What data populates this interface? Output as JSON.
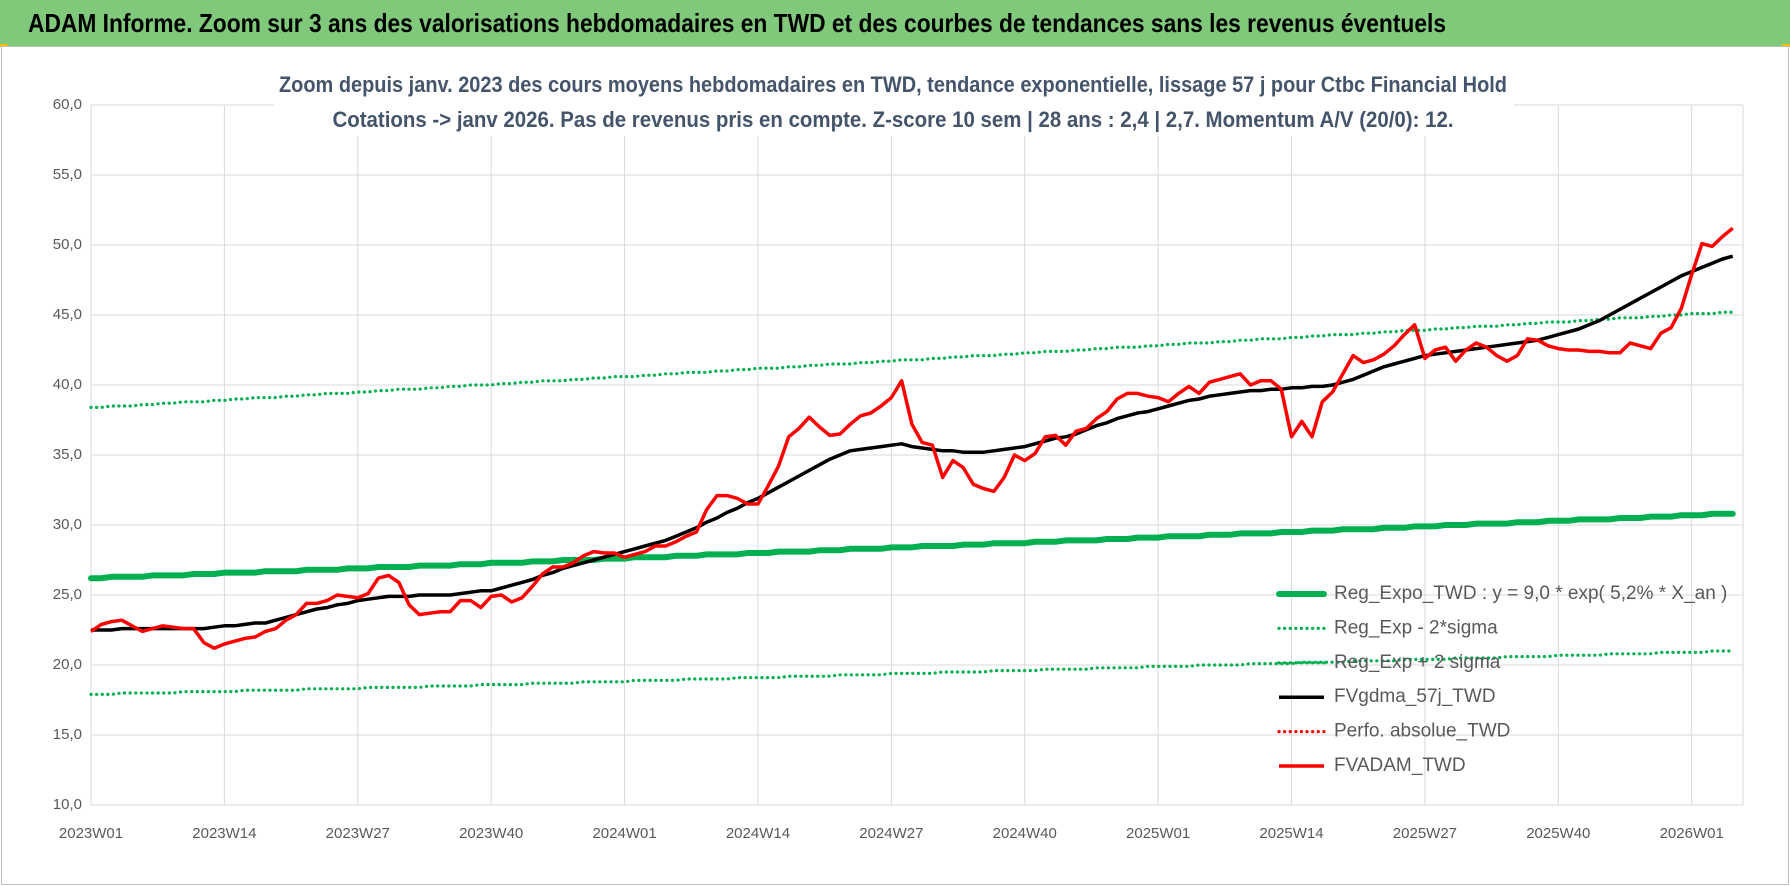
{
  "chart_data": {
    "type": "line",
    "title": "ADAM Informe. Zoom sur 3 ans des valorisations hebdomadaires en TWD et des courbes de tendances sans les revenus éventuels",
    "subtitle": [
      "Zoom depuis janv. 2023 des cours moyens hebdomadaires en TWD, tendance exponentielle, lissage 57 j pour Ctbc Financial Hold",
      "Cotations -> janv 2026. Pas de revenus pris en compte. Z-score 10 sem  | 28 ans : 2,4 | 2,7. Momentum A/V (20/0): 12."
    ],
    "categories": [
      "2023W01",
      null,
      null,
      null,
      null,
      null,
      null,
      null,
      null,
      null,
      null,
      null,
      null,
      "2023W14",
      null,
      null,
      null,
      null,
      null,
      null,
      null,
      null,
      null,
      null,
      null,
      null,
      "2023W27",
      null,
      null,
      null,
      null,
      null,
      null,
      null,
      null,
      null,
      null,
      null,
      null,
      "2023W40",
      null,
      null,
      null,
      null,
      null,
      null,
      null,
      null,
      null,
      null,
      null,
      null,
      "2024W01",
      null,
      null,
      null,
      null,
      null,
      null,
      null,
      null,
      null,
      null,
      null,
      null,
      "2024W14",
      null,
      null,
      null,
      null,
      null,
      null,
      null,
      null,
      null,
      null,
      null,
      null,
      "2024W27",
      null,
      null,
      null,
      null,
      null,
      null,
      null,
      null,
      null,
      null,
      null,
      null,
      "2024W40",
      null,
      null,
      null,
      null,
      null,
      null,
      null,
      null,
      null,
      null,
      null,
      null,
      "2025W01",
      null,
      null,
      null,
      null,
      null,
      null,
      null,
      null,
      null,
      null,
      null,
      null,
      "2025W14",
      null,
      null,
      null,
      null,
      null,
      null,
      null,
      null,
      null,
      null,
      null,
      null,
      "2025W27",
      null,
      null,
      null,
      null,
      null,
      null,
      null,
      null,
      null,
      null,
      null,
      null,
      "2025W40",
      null,
      null,
      null,
      null,
      null,
      null,
      null,
      null,
      null,
      null,
      null,
      null,
      "2026W01",
      null,
      null,
      null,
      null
    ],
    "ylim": [
      10,
      60
    ],
    "yticks": [
      {
        "value": 10,
        "label": "10,0"
      },
      {
        "value": 15,
        "label": "15,0"
      },
      {
        "value": 20,
        "label": "20,0"
      },
      {
        "value": 25,
        "label": "25,0"
      },
      {
        "value": 30,
        "label": "30,0"
      },
      {
        "value": 35,
        "label": "35,0"
      },
      {
        "value": 40,
        "label": "40,0"
      },
      {
        "value": 45,
        "label": "45,0"
      },
      {
        "value": 50,
        "label": "50,0"
      },
      {
        "value": 55,
        "label": "55,0"
      },
      {
        "value": 60,
        "label": "60,0"
      }
    ],
    "grid": true,
    "legend": "bottom-right",
    "series": [
      {
        "name": "Reg_Expo_TWD : y = 9,0 * exp( 5,2% *  X_an )",
        "color": "#00b050",
        "style": "thick",
        "values": [
          26.2,
          26.2,
          26.3,
          26.3,
          26.3,
          26.3,
          26.4,
          26.4,
          26.4,
          26.4,
          26.5,
          26.5,
          26.5,
          26.6,
          26.6,
          26.6,
          26.6,
          26.7,
          26.7,
          26.7,
          26.7,
          26.8,
          26.8,
          26.8,
          26.8,
          26.9,
          26.9,
          26.9,
          27.0,
          27.0,
          27.0,
          27.0,
          27.1,
          27.1,
          27.1,
          27.1,
          27.2,
          27.2,
          27.2,
          27.3,
          27.3,
          27.3,
          27.3,
          27.4,
          27.4,
          27.4,
          27.5,
          27.5,
          27.5,
          27.5,
          27.6,
          27.6,
          27.6,
          27.7,
          27.7,
          27.7,
          27.7,
          27.8,
          27.8,
          27.8,
          27.9,
          27.9,
          27.9,
          27.9,
          28.0,
          28.0,
          28.0,
          28.1,
          28.1,
          28.1,
          28.1,
          28.2,
          28.2,
          28.2,
          28.3,
          28.3,
          28.3,
          28.3,
          28.4,
          28.4,
          28.4,
          28.5,
          28.5,
          28.5,
          28.5,
          28.6,
          28.6,
          28.6,
          28.7,
          28.7,
          28.7,
          28.7,
          28.8,
          28.8,
          28.8,
          28.9,
          28.9,
          28.9,
          28.9,
          29.0,
          29.0,
          29.0,
          29.1,
          29.1,
          29.1,
          29.2,
          29.2,
          29.2,
          29.2,
          29.3,
          29.3,
          29.3,
          29.4,
          29.4,
          29.4,
          29.4,
          29.5,
          29.5,
          29.5,
          29.6,
          29.6,
          29.6,
          29.7,
          29.7,
          29.7,
          29.7,
          29.8,
          29.8,
          29.8,
          29.9,
          29.9,
          29.9,
          30.0,
          30.0,
          30.0,
          30.1,
          30.1,
          30.1,
          30.1,
          30.2,
          30.2,
          30.2,
          30.3,
          30.3,
          30.3,
          30.4,
          30.4,
          30.4,
          30.4,
          30.5,
          30.5,
          30.5,
          30.6,
          30.6,
          30.6,
          30.7,
          30.7,
          30.7,
          30.8,
          30.8,
          30.8
        ]
      },
      {
        "name": "Reg_Exp - 2*sigma",
        "color": "#00b050",
        "style": "dotted",
        "values": [
          17.9,
          17.9,
          17.9,
          18.0,
          18.0,
          18.0,
          18.0,
          18.0,
          18.0,
          18.1,
          18.1,
          18.1,
          18.1,
          18.1,
          18.1,
          18.2,
          18.2,
          18.2,
          18.2,
          18.2,
          18.2,
          18.3,
          18.3,
          18.3,
          18.3,
          18.3,
          18.3,
          18.4,
          18.4,
          18.4,
          18.4,
          18.4,
          18.4,
          18.5,
          18.5,
          18.5,
          18.5,
          18.5,
          18.6,
          18.6,
          18.6,
          18.6,
          18.6,
          18.7,
          18.7,
          18.7,
          18.7,
          18.7,
          18.8,
          18.8,
          18.8,
          18.8,
          18.8,
          18.9,
          18.9,
          18.9,
          18.9,
          18.9,
          19.0,
          19.0,
          19.0,
          19.0,
          19.0,
          19.1,
          19.1,
          19.1,
          19.1,
          19.1,
          19.2,
          19.2,
          19.2,
          19.2,
          19.2,
          19.3,
          19.3,
          19.3,
          19.3,
          19.3,
          19.4,
          19.4,
          19.4,
          19.4,
          19.4,
          19.5,
          19.5,
          19.5,
          19.5,
          19.5,
          19.6,
          19.6,
          19.6,
          19.6,
          19.6,
          19.7,
          19.7,
          19.7,
          19.7,
          19.7,
          19.8,
          19.8,
          19.8,
          19.8,
          19.8,
          19.9,
          19.9,
          19.9,
          19.9,
          19.9,
          20.0,
          20.0,
          20.0,
          20.0,
          20.0,
          20.1,
          20.1,
          20.1,
          20.1,
          20.1,
          20.2,
          20.2,
          20.2,
          20.2,
          20.2,
          20.3,
          20.3,
          20.3,
          20.3,
          20.3,
          20.4,
          20.4,
          20.4,
          20.4,
          20.4,
          20.5,
          20.5,
          20.5,
          20.5,
          20.5,
          20.6,
          20.6,
          20.6,
          20.6,
          20.6,
          20.7,
          20.7,
          20.7,
          20.7,
          20.7,
          20.8,
          20.8,
          20.8,
          20.8,
          20.8,
          20.9,
          20.9,
          20.9,
          20.9,
          20.9,
          21.0,
          21.0,
          21.0
        ]
      },
      {
        "name": "Reg_Exp + 2 sigma",
        "color": "#00b050",
        "style": "dotted",
        "values": [
          38.4,
          38.4,
          38.5,
          38.5,
          38.5,
          38.6,
          38.6,
          38.7,
          38.7,
          38.8,
          38.8,
          38.8,
          38.9,
          38.9,
          39.0,
          39.0,
          39.1,
          39.1,
          39.1,
          39.2,
          39.2,
          39.3,
          39.3,
          39.4,
          39.4,
          39.4,
          39.5,
          39.5,
          39.6,
          39.6,
          39.7,
          39.7,
          39.7,
          39.8,
          39.8,
          39.9,
          39.9,
          40.0,
          40.0,
          40.0,
          40.1,
          40.1,
          40.2,
          40.2,
          40.3,
          40.3,
          40.3,
          40.4,
          40.4,
          40.5,
          40.5,
          40.6,
          40.6,
          40.6,
          40.7,
          40.7,
          40.8,
          40.8,
          40.9,
          40.9,
          40.9,
          41.0,
          41.0,
          41.1,
          41.1,
          41.2,
          41.2,
          41.2,
          41.3,
          41.3,
          41.4,
          41.4,
          41.5,
          41.5,
          41.5,
          41.6,
          41.6,
          41.7,
          41.7,
          41.8,
          41.8,
          41.8,
          41.9,
          41.9,
          42.0,
          42.0,
          42.1,
          42.1,
          42.1,
          42.2,
          42.2,
          42.3,
          42.3,
          42.4,
          42.4,
          42.4,
          42.5,
          42.5,
          42.6,
          42.6,
          42.7,
          42.7,
          42.7,
          42.8,
          42.8,
          42.9,
          42.9,
          43.0,
          43.0,
          43.0,
          43.1,
          43.1,
          43.2,
          43.2,
          43.3,
          43.3,
          43.3,
          43.4,
          43.4,
          43.5,
          43.5,
          43.6,
          43.6,
          43.6,
          43.7,
          43.7,
          43.8,
          43.8,
          43.9,
          43.9,
          43.9,
          44.0,
          44.0,
          44.1,
          44.1,
          44.2,
          44.2,
          44.2,
          44.3,
          44.3,
          44.4,
          44.4,
          44.5,
          44.5,
          44.5,
          44.6,
          44.6,
          44.7,
          44.7,
          44.8,
          44.8,
          44.8,
          44.9,
          44.9,
          45.0,
          45.0,
          45.1,
          45.1,
          45.1,
          45.2,
          45.2
        ]
      },
      {
        "name": "FVgdma_57j_TWD",
        "color": "#000000",
        "style": "solid",
        "values": [
          22.5,
          22.5,
          22.5,
          22.6,
          22.6,
          22.6,
          22.6,
          22.6,
          22.6,
          22.6,
          22.6,
          22.6,
          22.7,
          22.8,
          22.8,
          22.9,
          23.0,
          23.0,
          23.2,
          23.4,
          23.6,
          23.8,
          24.0,
          24.1,
          24.3,
          24.4,
          24.6,
          24.7,
          24.8,
          24.9,
          24.9,
          24.9,
          25.0,
          25.0,
          25.0,
          25.0,
          25.1,
          25.2,
          25.3,
          25.3,
          25.5,
          25.7,
          25.9,
          26.1,
          26.4,
          26.6,
          26.9,
          27.1,
          27.3,
          27.5,
          27.7,
          27.9,
          28.1,
          28.3,
          28.5,
          28.7,
          28.9,
          29.2,
          29.5,
          29.8,
          30.2,
          30.5,
          30.9,
          31.2,
          31.6,
          31.9,
          32.3,
          32.7,
          33.1,
          33.5,
          33.9,
          34.3,
          34.7,
          35.0,
          35.3,
          35.4,
          35.5,
          35.6,
          35.7,
          35.8,
          35.6,
          35.5,
          35.4,
          35.3,
          35.3,
          35.2,
          35.2,
          35.2,
          35.3,
          35.4,
          35.5,
          35.6,
          35.8,
          36.0,
          36.2,
          36.3,
          36.5,
          36.8,
          37.1,
          37.3,
          37.6,
          37.8,
          38.0,
          38.1,
          38.3,
          38.5,
          38.7,
          38.9,
          39.0,
          39.2,
          39.3,
          39.4,
          39.5,
          39.6,
          39.6,
          39.7,
          39.7,
          39.8,
          39.8,
          39.9,
          39.9,
          40.0,
          40.2,
          40.4,
          40.7,
          41.0,
          41.3,
          41.5,
          41.7,
          41.9,
          42.1,
          42.2,
          42.3,
          42.4,
          42.5,
          42.6,
          42.7,
          42.8,
          42.9,
          43.0,
          43.1,
          43.2,
          43.4,
          43.6,
          43.8,
          44.0,
          44.3,
          44.6,
          45.0,
          45.4,
          45.8,
          46.2,
          46.6,
          47.0,
          47.4,
          47.8,
          48.1,
          48.4,
          48.7,
          49.0,
          49.2
        ]
      },
      {
        "name": "Perfo. absolue_TWD",
        "color": "#ff0000",
        "style": "dotted",
        "values": [
          null,
          null,
          null,
          null,
          null,
          null,
          null,
          null,
          null,
          null,
          null,
          null,
          null,
          null,
          null,
          null,
          null,
          null,
          null,
          null,
          null,
          null,
          null,
          null,
          null,
          null,
          null,
          null,
          null,
          null,
          null,
          null,
          null,
          null,
          null,
          null,
          null,
          null,
          null,
          null,
          null,
          null,
          null,
          null,
          null,
          null,
          null,
          null,
          null,
          null,
          null,
          null,
          null,
          null,
          null,
          null,
          null,
          null,
          null,
          null,
          null,
          null,
          null,
          null,
          null,
          null,
          null,
          null,
          null,
          null,
          null,
          null,
          null,
          null,
          null,
          null,
          null,
          null,
          null,
          null,
          null,
          null,
          null,
          null,
          null,
          null,
          null,
          null,
          null,
          null,
          null,
          null,
          null,
          null,
          null,
          null,
          null,
          null,
          null,
          null,
          null,
          null,
          null,
          null,
          null,
          null,
          null,
          null,
          null,
          null,
          null,
          null,
          null,
          null,
          null,
          null,
          null,
          null,
          null,
          null,
          null,
          null,
          null,
          null,
          null,
          null,
          null,
          null,
          null,
          null,
          null,
          null,
          null,
          null,
          null,
          null,
          null,
          null,
          null,
          null,
          null,
          null,
          null,
          null,
          null,
          null,
          null,
          null,
          null,
          null,
          null,
          null,
          null,
          null,
          null,
          null,
          null,
          null,
          null,
          null,
          null
        ]
      },
      {
        "name": "FVADAM_TWD",
        "color": "#ff0000",
        "style": "solid",
        "values": [
          22.4,
          22.9,
          23.1,
          23.2,
          22.8,
          22.4,
          22.6,
          22.8,
          22.7,
          22.6,
          22.6,
          21.6,
          21.2,
          21.5,
          21.7,
          21.9,
          22.0,
          22.4,
          22.6,
          23.2,
          23.6,
          24.4,
          24.4,
          24.6,
          25.0,
          24.9,
          24.8,
          25.1,
          26.2,
          26.4,
          25.9,
          24.3,
          23.6,
          23.7,
          23.8,
          23.8,
          24.6,
          24.6,
          24.1,
          24.9,
          25.0,
          24.5,
          24.8,
          25.6,
          26.5,
          27.0,
          27.0,
          27.3,
          27.8,
          28.1,
          28.0,
          28.0,
          27.7,
          27.9,
          28.1,
          28.5,
          28.5,
          28.8,
          29.2,
          29.5,
          31.1,
          32.1,
          32.1,
          31.9,
          31.5,
          31.5,
          32.8,
          34.2,
          36.3,
          36.9,
          37.7,
          37.0,
          36.4,
          36.5,
          37.2,
          37.8,
          38.0,
          38.5,
          39.1,
          40.3,
          37.2,
          35.9,
          35.7,
          33.4,
          34.6,
          34.1,
          32.9,
          32.6,
          32.4,
          33.4,
          35.0,
          34.6,
          35.1,
          36.3,
          36.4,
          35.7,
          36.7,
          36.9,
          37.6,
          38.1,
          39.0,
          39.4,
          39.4,
          39.2,
          39.1,
          38.8,
          39.4,
          39.9,
          39.4,
          40.2,
          40.4,
          40.6,
          40.8,
          40.0,
          40.3,
          40.3,
          39.7,
          36.3,
          37.4,
          36.3,
          38.8,
          39.5,
          40.8,
          42.1,
          41.6,
          41.8,
          42.2,
          42.8,
          43.6,
          44.3,
          41.9,
          42.5,
          42.7,
          41.7,
          42.5,
          43.0,
          42.7,
          42.1,
          41.7,
          42.1,
          43.3,
          43.2,
          42.8,
          42.6,
          42.5,
          42.5,
          42.4,
          42.4,
          42.3,
          42.3,
          43.0,
          42.8,
          42.6,
          43.7,
          44.1,
          45.5,
          47.9,
          50.1,
          49.9,
          50.6,
          51.2
        ]
      }
    ]
  }
}
